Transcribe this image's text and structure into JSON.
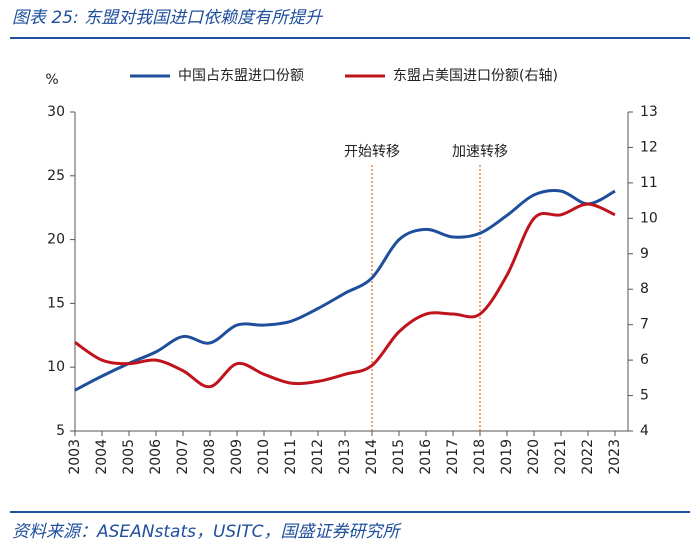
{
  "chart_data": {
    "type": "line",
    "title": "图表 25:  东盟对我国进口依赖度有所提升",
    "source": "资料来源：ASEANstats，USITC，国盛证券研究所",
    "ylabel": "%",
    "categories": [
      "2003",
      "2004",
      "2005",
      "2006",
      "2007",
      "2008",
      "2009",
      "2010",
      "2011",
      "2012",
      "2013",
      "2014",
      "2015",
      "2016",
      "2017",
      "2018",
      "2019",
      "2020",
      "2021",
      "2022",
      "2023"
    ],
    "series": [
      {
        "name": "中国占东盟进口份额",
        "color": "#1f4e9c",
        "values": [
          8.2,
          9.3,
          10.3,
          11.2,
          12.4,
          11.9,
          13.3,
          13.3,
          13.6,
          14.6,
          15.8,
          17.0,
          20.0,
          20.8,
          20.2,
          20.5,
          21.9,
          23.5,
          23.8,
          22.8,
          23.8
        ]
      },
      {
        "name": "东盟占美国进口份额(右轴)",
        "color": "#c0141c",
        "axis": "y2",
        "values": [
          6.5,
          6.0,
          5.9,
          6.0,
          5.7,
          5.25,
          5.9,
          5.6,
          5.35,
          5.4,
          5.6,
          5.85,
          6.8,
          7.3,
          7.3,
          7.3,
          8.4,
          10.0,
          10.1,
          10.4,
          10.1
        ]
      }
    ],
    "ylim": [
      5,
      30
    ],
    "yticks": [
      5,
      10,
      15,
      20,
      25,
      30
    ],
    "y2lim": [
      4,
      13
    ],
    "y2ticks": [
      4,
      5,
      6,
      7,
      8,
      9,
      10,
      11,
      12,
      13
    ],
    "annotations": [
      {
        "text": "开始转移",
        "category": "2014"
      },
      {
        "text": "加速转移",
        "category": "2018"
      }
    ]
  }
}
